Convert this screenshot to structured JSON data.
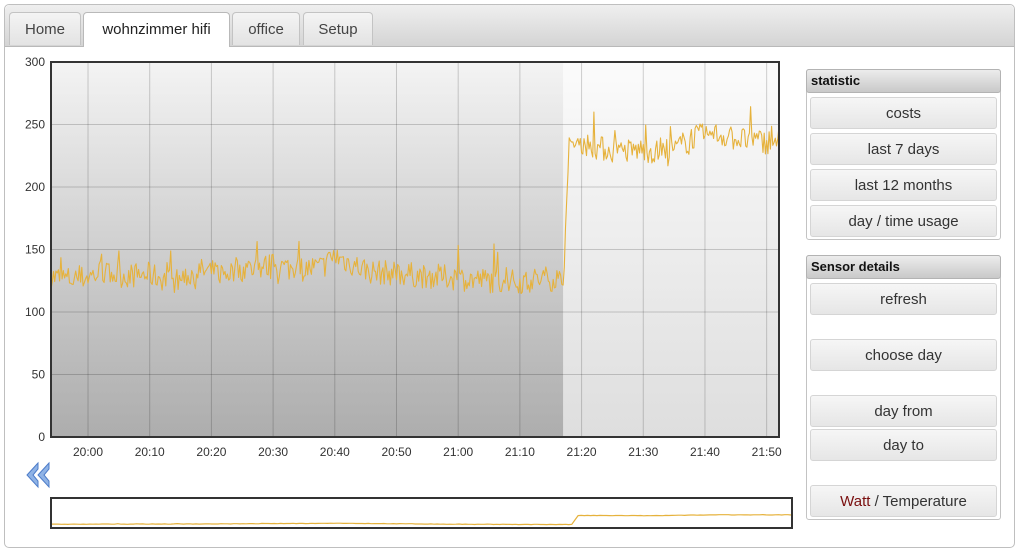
{
  "tabs": [
    {
      "label": "Home",
      "active": false
    },
    {
      "label": "wohnzimmer hifi",
      "active": true
    },
    {
      "label": "office",
      "active": false
    },
    {
      "label": "Setup",
      "active": false
    }
  ],
  "statistic": {
    "title": "statistic",
    "buttons": [
      "costs",
      "last 7 days",
      "last 12 months",
      "day / time usage"
    ]
  },
  "sensor": {
    "title": "Sensor details",
    "refresh": "refresh",
    "choose_day": "choose day",
    "day_from": "day from",
    "day_to": "day to",
    "watt": "Watt",
    "separator": " / ",
    "temperature": "Temperature"
  },
  "icons": {
    "nav_back": "double-chevron-left-icon"
  },
  "colors": {
    "series": "#e6b23c",
    "selection_shade": "#9a9a9a"
  },
  "chart_data": {
    "type": "line",
    "title": "",
    "xlabel": "",
    "ylabel": "",
    "ylim": [
      0,
      300
    ],
    "yticks": [
      0,
      50,
      100,
      150,
      200,
      250,
      300
    ],
    "xlim": [
      "19:54",
      "21:52"
    ],
    "xticks": [
      "20:00",
      "20:10",
      "20:20",
      "20:30",
      "20:40",
      "20:50",
      "21:00",
      "21:10",
      "21:20",
      "21:30",
      "21:40",
      "21:50"
    ],
    "grid": true,
    "selection": {
      "from": "19:54",
      "to": "21:17"
    },
    "series": [
      {
        "x": [
          "19:54",
          "19:58",
          "20:02",
          "20:06",
          "20:10",
          "20:14",
          "20:18",
          "20:22",
          "20:26",
          "20:30",
          "20:34",
          "20:38",
          "20:40",
          "20:42",
          "20:46",
          "20:50",
          "20:54",
          "20:58",
          "21:02",
          "21:06",
          "21:10",
          "21:14",
          "21:16",
          "21:17",
          "21:18",
          "21:20",
          "21:22",
          "21:26",
          "21:30",
          "21:34",
          "21:38",
          "21:42",
          "21:46",
          "21:50",
          "21:52"
        ],
        "values": [
          128,
          126,
          131,
          129,
          130,
          124,
          133,
          131,
          135,
          137,
          134,
          136,
          145,
          140,
          132,
          131,
          129,
          128,
          126,
          125,
          124,
          127,
          126,
          124,
          230,
          236,
          232,
          228,
          230,
          226,
          240,
          242,
          238,
          236,
          240
        ]
      }
    ]
  },
  "overview_data": {
    "type": "line",
    "ylim": [
      0,
      300
    ],
    "xlim": [
      "19:54",
      "21:52"
    ],
    "series": [
      {
        "x": [
          "19:54",
          "20:20",
          "20:40",
          "21:00",
          "21:16",
          "21:17",
          "21:18",
          "21:30",
          "21:40",
          "21:52"
        ],
        "values": [
          128,
          132,
          140,
          127,
          125,
          125,
          232,
          230,
          240,
          240
        ]
      }
    ]
  }
}
